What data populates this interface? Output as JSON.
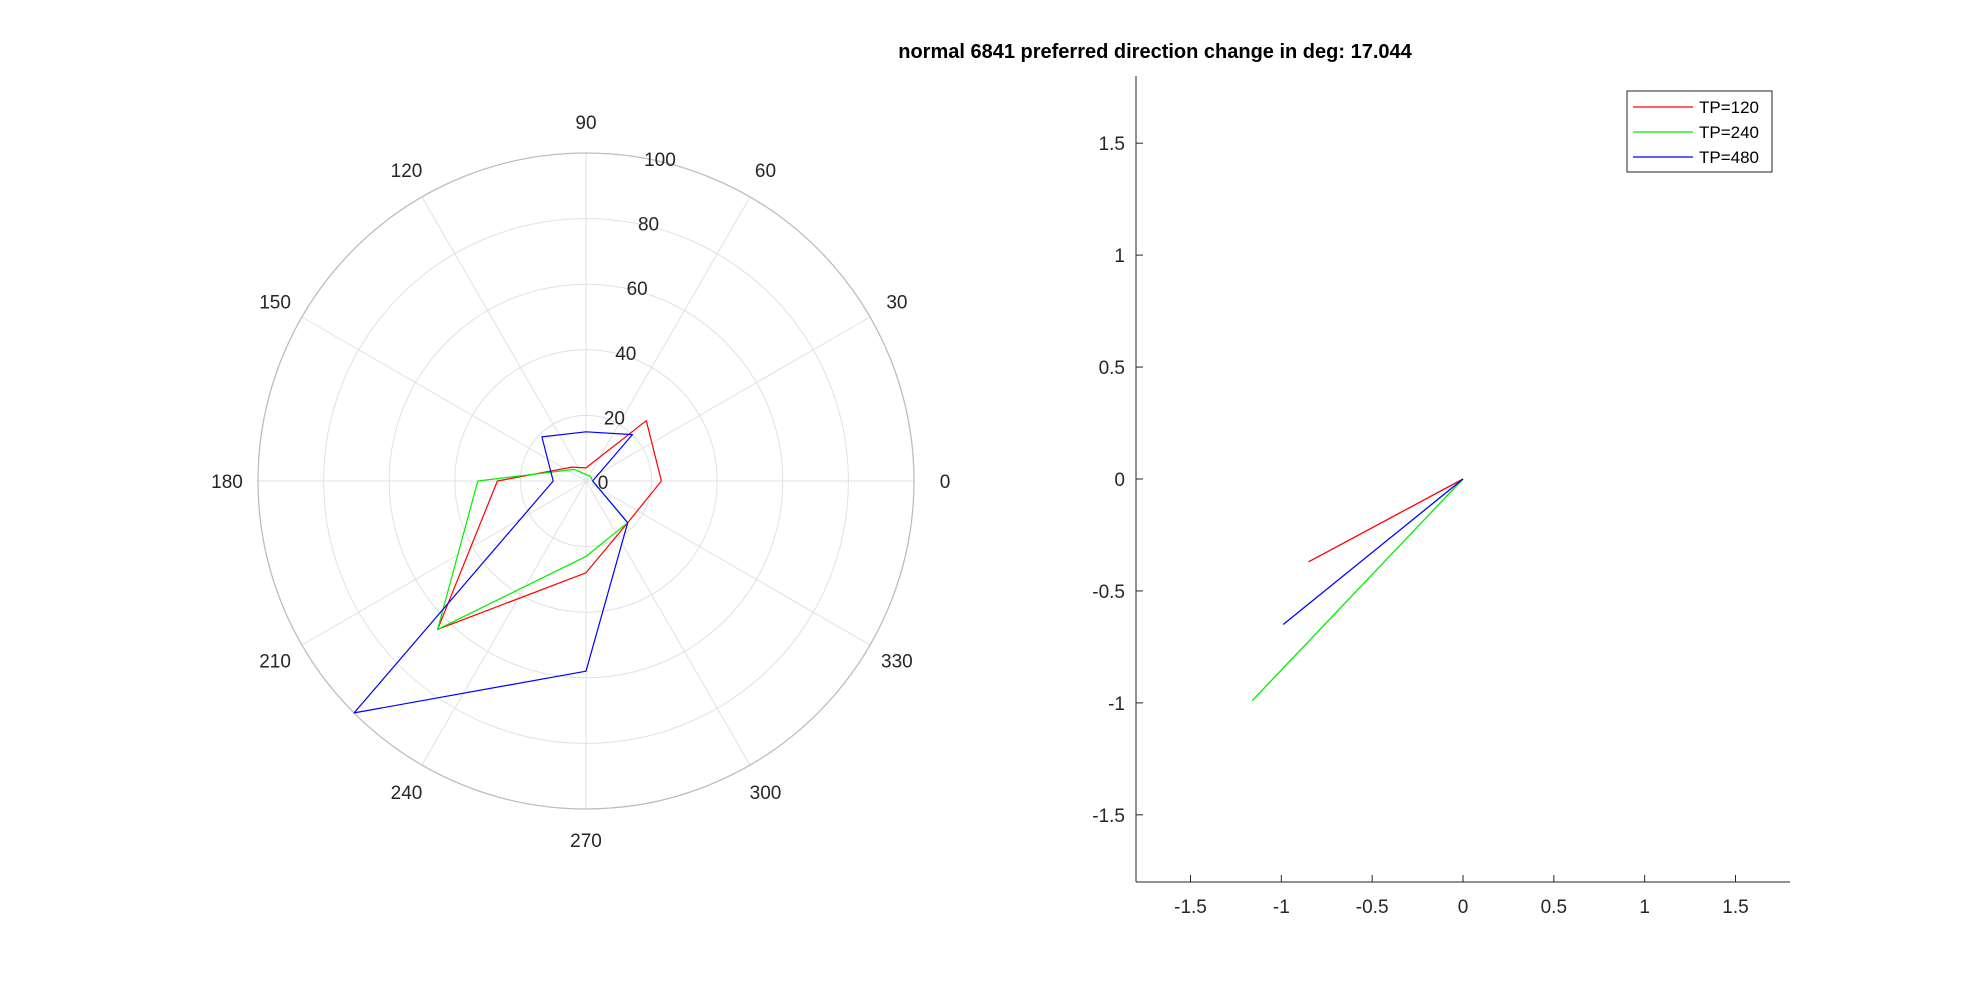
{
  "chart_data": [
    {
      "type": "polar",
      "theta_unit": "deg",
      "r_lim": [
        0,
        100
      ],
      "r_ticks": [
        0,
        20,
        40,
        60,
        80,
        100
      ],
      "theta_ticks": [
        0,
        30,
        60,
        90,
        120,
        150,
        180,
        210,
        240,
        270,
        300,
        330
      ],
      "grid": true,
      "series": [
        {
          "name": "TP=120",
          "color": "#ff0000",
          "theta": [
            0,
            45,
            90,
            135,
            180,
            225,
            270,
            315,
            0
          ],
          "r": [
            23,
            26,
            4,
            6,
            27,
            64,
            28,
            18,
            23
          ]
        },
        {
          "name": "TP=240",
          "color": "#00ee00",
          "theta": [
            0,
            45,
            90,
            135,
            180,
            225,
            270,
            315,
            0
          ],
          "r": [
            2,
            2,
            2,
            5,
            33,
            64,
            23,
            18,
            2
          ]
        },
        {
          "name": "TP=480",
          "color": "#0000ff",
          "theta": [
            0,
            45,
            90,
            135,
            180,
            225,
            270,
            315,
            0
          ],
          "r": [
            2,
            20,
            15,
            19,
            10,
            100,
            58,
            18,
            2
          ]
        }
      ]
    },
    {
      "type": "line",
      "title": "normal 6841 preferred direction change in deg: 17.044",
      "xlim": [
        -1.8,
        1.8
      ],
      "ylim": [
        -1.8,
        1.8
      ],
      "xticks": [
        "-1.5",
        "-1",
        "-0.5",
        "0",
        "0.5",
        "1",
        "1.5"
      ],
      "yticks": [
        "-1.5",
        "-1",
        "-0.5",
        "0",
        "0.5",
        "1",
        "1.5"
      ],
      "legend_position": "top-right",
      "series": [
        {
          "name": "TP=120",
          "color": "#ff0000",
          "x": [
            0,
            -0.85
          ],
          "y": [
            0,
            -0.37
          ]
        },
        {
          "name": "TP=240",
          "color": "#00ee00",
          "x": [
            0,
            -1.16
          ],
          "y": [
            0,
            -0.99
          ]
        },
        {
          "name": "TP=480",
          "color": "#0000ff",
          "x": [
            0,
            -0.99
          ],
          "y": [
            0,
            -0.65
          ]
        }
      ]
    }
  ]
}
